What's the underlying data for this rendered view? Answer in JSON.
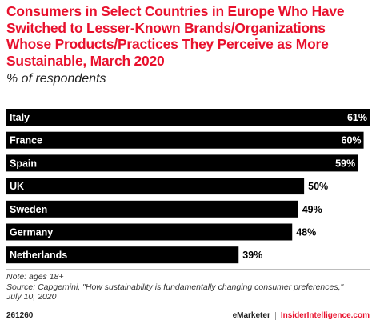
{
  "header": {
    "title": "Consumers in Select Countries in Europe Who Have Switched to Lesser-Known Brands/Organizations Whose Products/Practices They Perceive as More Sustainable, March 2020",
    "subtitle": "% of respondents"
  },
  "chart_data": {
    "type": "bar",
    "orientation": "horizontal",
    "categories": [
      "Italy",
      "France",
      "Spain",
      "UK",
      "Sweden",
      "Germany",
      "Netherlands"
    ],
    "values": [
      61,
      60,
      59,
      50,
      49,
      48,
      39
    ],
    "value_labels": [
      "61%",
      "60%",
      "59%",
      "50%",
      "49%",
      "48%",
      "39%"
    ],
    "xlim": [
      0,
      61
    ],
    "grid": false,
    "bar_color": "#000000",
    "label_color": "#ffffff",
    "value_label_color": "#000000"
  },
  "notes": {
    "note": "Note: ages 18+",
    "source": "Source: Capgemini, \"How sustainability is fundamentally changing consumer preferences,\"",
    "date": "July 10, 2020"
  },
  "footer": {
    "id": "261260",
    "brand_left": "eMarketer",
    "brand_right": "InsiderIntelligence.com"
  }
}
